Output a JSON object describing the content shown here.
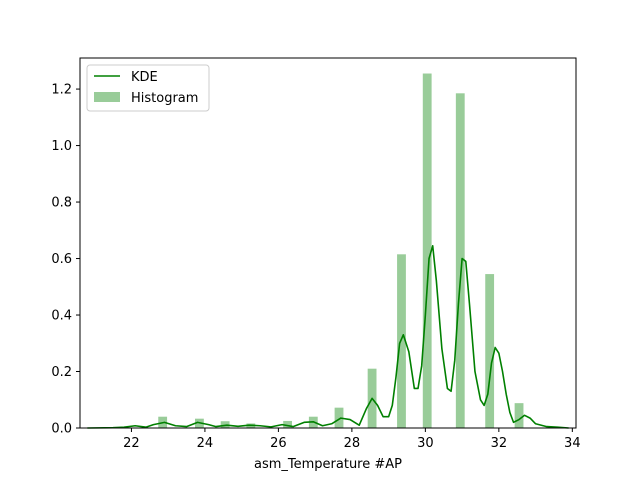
{
  "chart_data": {
    "type": "bar",
    "title": "",
    "xlabel": "asm_Temperature #AP",
    "ylabel": "",
    "xlim": [
      20.6,
      34.1
    ],
    "ylim": [
      0,
      1.31
    ],
    "xticks": [
      22,
      24,
      26,
      28,
      30,
      32,
      34
    ],
    "yticks": [
      0.0,
      0.2,
      0.4,
      0.6,
      0.8,
      1.0,
      1.2
    ],
    "grid": false,
    "legend": {
      "position": "top-left",
      "entries": [
        "KDE",
        "Histogram"
      ]
    },
    "colors": {
      "kde": "#008000",
      "histogram": "#99cc99"
    },
    "series": [
      {
        "name": "Histogram",
        "kind": "bar",
        "bar_width": 0.24,
        "x": [
          22.85,
          23.85,
          24.55,
          25.25,
          26.25,
          26.95,
          27.65,
          28.55,
          29.35,
          30.05,
          30.95,
          31.75,
          32.55
        ],
        "values": [
          0.04,
          0.033,
          0.024,
          0.016,
          0.025,
          0.04,
          0.072,
          0.21,
          0.615,
          1.255,
          1.185,
          0.545,
          0.088
        ]
      },
      {
        "name": "KDE",
        "kind": "line",
        "x": [
          20.8,
          21.5,
          21.8,
          22.1,
          22.4,
          22.6,
          22.9,
          23.2,
          23.5,
          23.8,
          24.1,
          24.3,
          24.6,
          24.9,
          25.2,
          25.5,
          25.8,
          26.1,
          26.4,
          26.7,
          26.95,
          27.2,
          27.45,
          27.7,
          27.95,
          28.2,
          28.4,
          28.55,
          28.7,
          28.85,
          29.0,
          29.1,
          29.2,
          29.3,
          29.4,
          29.55,
          29.7,
          29.8,
          29.9,
          30.0,
          30.1,
          30.2,
          30.3,
          30.45,
          30.6,
          30.7,
          30.8,
          30.9,
          31.0,
          31.1,
          31.2,
          31.35,
          31.5,
          31.6,
          31.7,
          31.8,
          31.9,
          32.0,
          32.1,
          32.2,
          32.3,
          32.4,
          32.55,
          32.7,
          32.85,
          33.0,
          33.3,
          33.6,
          33.9
        ],
        "y": [
          0.0,
          0.001,
          0.003,
          0.008,
          0.003,
          0.012,
          0.02,
          0.008,
          0.005,
          0.02,
          0.012,
          0.005,
          0.01,
          0.006,
          0.01,
          0.008,
          0.004,
          0.012,
          0.005,
          0.02,
          0.022,
          0.008,
          0.015,
          0.035,
          0.03,
          0.01,
          0.07,
          0.105,
          0.08,
          0.04,
          0.04,
          0.08,
          0.18,
          0.3,
          0.33,
          0.27,
          0.14,
          0.14,
          0.22,
          0.4,
          0.6,
          0.645,
          0.52,
          0.28,
          0.14,
          0.13,
          0.24,
          0.44,
          0.6,
          0.59,
          0.44,
          0.2,
          0.1,
          0.08,
          0.12,
          0.23,
          0.285,
          0.265,
          0.2,
          0.12,
          0.055,
          0.02,
          0.03,
          0.045,
          0.035,
          0.015,
          0.005,
          0.003,
          0.0
        ]
      }
    ]
  }
}
